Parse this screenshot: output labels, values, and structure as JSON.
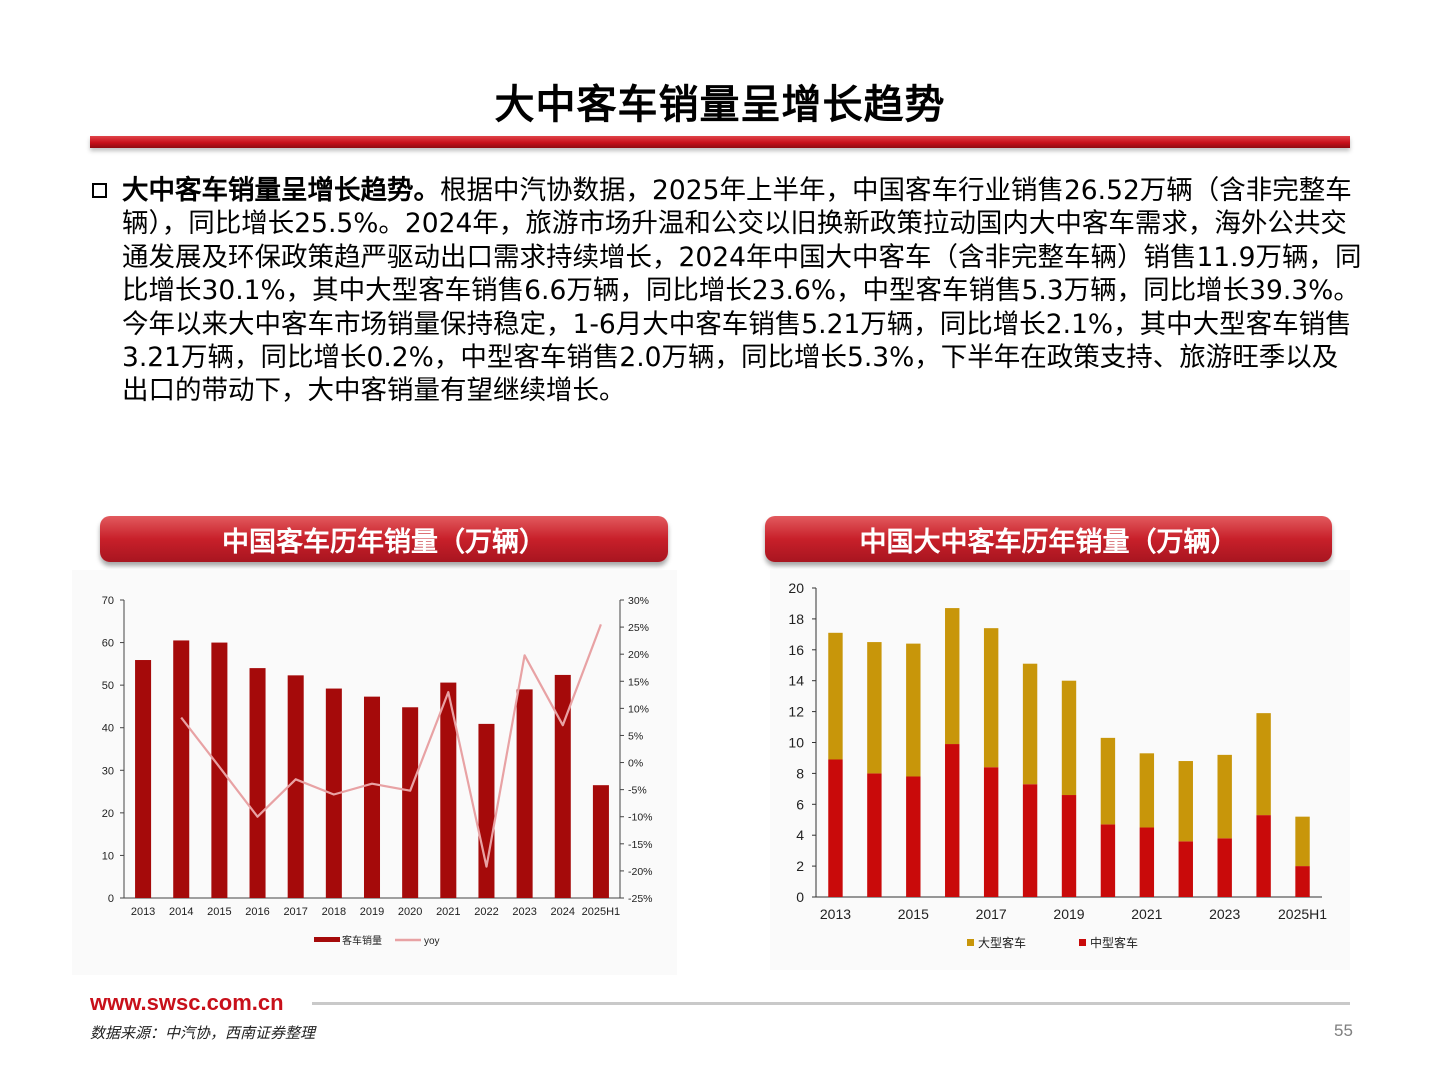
{
  "page": {
    "title": "大中客车销量呈增长趋势",
    "bullet_lead": "大中客车销量呈增长趋势。",
    "bullet_body": "根据中汽协数据，2025年上半年，中国客车行业销售26.52万辆（含非完整车辆），同比增长25.5%。2024年，旅游市场升温和公交以旧换新政策拉动国内大中客车需求，海外公共交通发展及环保政策趋严驱动出口需求持续增长，2024年中国大中客车（含非完整车辆）销售11.9万辆，同比增长30.1%，其中大型客车销售6.6万辆，同比增长23.6%，中型客车销售5.3万辆，同比增长39.3%。今年以来大中客车市场销量保持稳定，1-6月大中客车销售5.21万辆，同比增长2.1%，其中大型客车销售3.21万辆，同比增长0.2%，中型客车销售2.0万辆，同比增长5.3%，下半年在政策支持、旅游旺季以及出口的带动下，大中客销量有望继续增长。",
    "chart_left_title": "中国客车历年销量（万辆）",
    "chart_right_title": "中国大中客车历年销量（万辆）",
    "footer_url": "www.swsc.com.cn",
    "source": "数据来源：中汽协，西南证券整理",
    "page_number": "55"
  },
  "chart_data": [
    {
      "type": "bar",
      "categories": [
        "2013",
        "2014",
        "2015",
        "2016",
        "2017",
        "2018",
        "2019",
        "2020",
        "2021",
        "2022",
        "2023",
        "2024",
        "2025H1"
      ],
      "series": [
        {
          "name": "客车销量",
          "type": "bar",
          "axis": "left",
          "color": "#a50a0a",
          "values": [
            55.9,
            60.5,
            60.0,
            54.0,
            52.3,
            49.2,
            47.3,
            44.8,
            50.6,
            40.9,
            49.0,
            52.4,
            26.5
          ]
        },
        {
          "name": "yoy",
          "type": "line",
          "axis": "right",
          "color": "#e8a2a4",
          "values": [
            null,
            8.3,
            -0.8,
            -10.0,
            -3.1,
            -5.9,
            -3.9,
            -5.2,
            13.0,
            -19.2,
            19.8,
            6.9,
            25.5
          ]
        }
      ],
      "y_left": {
        "ylim": [
          0,
          70
        ],
        "ticks": [
          "0",
          "10",
          "20",
          "30",
          "40",
          "50",
          "60",
          "70"
        ]
      },
      "y_right": {
        "ylim": [
          -25,
          30
        ],
        "ticks": [
          "-25%",
          "-20%",
          "-15%",
          "-10%",
          "-5%",
          "0%",
          "5%",
          "10%",
          "15%",
          "20%",
          "25%",
          "30%"
        ]
      },
      "legend_position": "bottom"
    },
    {
      "type": "bar",
      "stacked": true,
      "categories": [
        "2013",
        "2014",
        "2015",
        "2016",
        "2017",
        "2018",
        "2019",
        "2020",
        "2021",
        "2022",
        "2023",
        "2024",
        "2025H1"
      ],
      "x_tick_labels": [
        "2013",
        "",
        "2015",
        "",
        "2017",
        "",
        "2019",
        "",
        "2021",
        "",
        "2023",
        "",
        "2025H1"
      ],
      "series": [
        {
          "name": "中型客车",
          "color": "#c90a0a",
          "values": [
            8.9,
            8.0,
            7.8,
            9.9,
            8.4,
            7.3,
            6.6,
            4.7,
            4.5,
            3.6,
            3.8,
            5.3,
            2.0
          ]
        },
        {
          "name": "大型客车",
          "color": "#c8960a",
          "values": [
            8.2,
            8.5,
            8.6,
            8.8,
            9.0,
            7.8,
            7.4,
            5.6,
            4.8,
            5.2,
            5.4,
            6.6,
            3.2
          ]
        }
      ],
      "ylim": [
        0,
        20
      ],
      "y_ticks": [
        "0",
        "2",
        "4",
        "6",
        "8",
        "10",
        "12",
        "14",
        "16",
        "18",
        "20"
      ],
      "legend_position": "bottom"
    }
  ]
}
